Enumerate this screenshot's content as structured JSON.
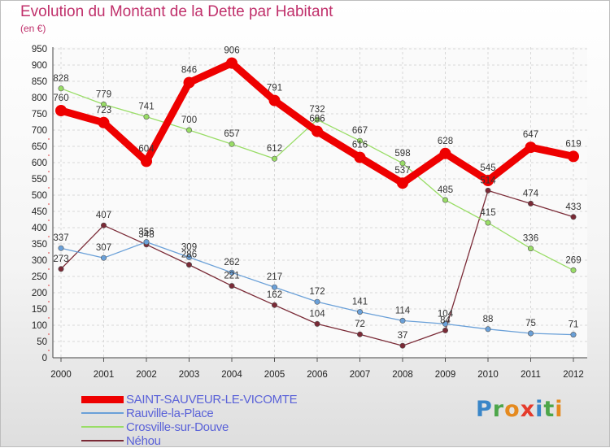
{
  "title": "Evolution du Montant de la Dette par Habitant",
  "subtitle": "(en €)",
  "logo": {
    "text": "Proxiti",
    "letters": [
      {
        "ch": "P",
        "color": "#3a86c8"
      },
      {
        "ch": "r",
        "color": "#4da64a"
      },
      {
        "ch": "o",
        "color": "#e58a1f"
      },
      {
        "ch": "x",
        "color": "#e53b2c"
      },
      {
        "ch": "i",
        "color": "#3a86c8"
      },
      {
        "ch": "t",
        "color": "#4da64a"
      },
      {
        "ch": "i",
        "color": "#e58a1f"
      }
    ]
  },
  "chart_data": {
    "type": "line",
    "x": [
      "2000",
      "2001",
      "2002",
      "2003",
      "2004",
      "2005",
      "2006",
      "2007",
      "2008",
      "2009",
      "2010",
      "2011",
      "2012"
    ],
    "ylim": [
      0,
      950
    ],
    "yticks": [
      0,
      50,
      100,
      150,
      200,
      250,
      300,
      350,
      400,
      450,
      500,
      550,
      600,
      650,
      700,
      750,
      800,
      850,
      900,
      950
    ],
    "grid": true,
    "legend_position": "bottom-left",
    "series": [
      {
        "name": "SAINT-SAUVEUR-LE-VICOMTE",
        "color": "#ee0000",
        "width": 9,
        "marker": 7,
        "values": [
          760,
          723,
          604,
          846,
          906,
          791,
          696,
          616,
          537,
          628,
          545,
          647,
          619
        ]
      },
      {
        "name": "Rauville-la-Place",
        "color": "#6aa0d8",
        "width": 1.3,
        "marker": 3.2,
        "values": [
          337,
          307,
          356,
          309,
          262,
          217,
          172,
          141,
          114,
          104,
          88,
          75,
          71
        ]
      },
      {
        "name": "Crosville-sur-Douve",
        "color": "#99dd66",
        "width": 1.3,
        "marker": 3.2,
        "values": [
          828,
          779,
          741,
          700,
          657,
          612,
          732,
          667,
          598,
          485,
          415,
          336,
          269
        ]
      },
      {
        "name": "Néhou",
        "color": "#7a2a36",
        "width": 1.3,
        "marker": 3.2,
        "values": [
          273,
          407,
          348,
          286,
          221,
          162,
          104,
          72,
          37,
          84,
          514,
          474,
          433
        ]
      }
    ]
  }
}
